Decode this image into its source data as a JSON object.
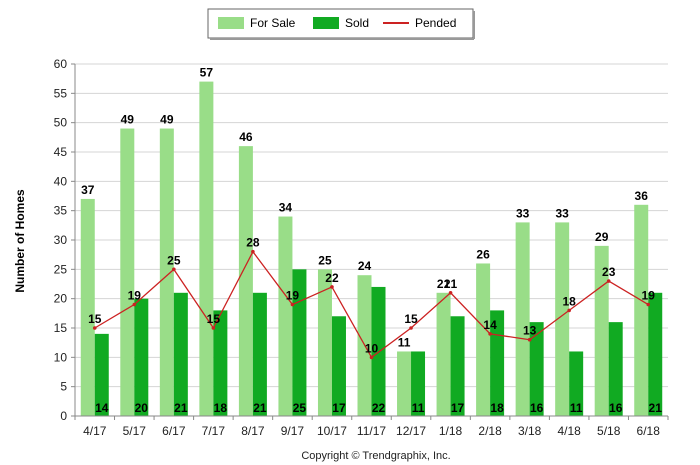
{
  "chart_data": {
    "type": "bar",
    "categories": [
      "4/17",
      "5/17",
      "6/17",
      "7/17",
      "8/17",
      "9/17",
      "10/17",
      "11/17",
      "12/17",
      "1/18",
      "2/18",
      "3/18",
      "4/18",
      "5/18",
      "6/18"
    ],
    "series": [
      {
        "name": "For Sale",
        "type": "bar",
        "color": "#99dd88",
        "values": [
          37,
          49,
          49,
          57,
          46,
          34,
          25,
          24,
          11,
          21,
          26,
          33,
          33,
          29,
          36
        ]
      },
      {
        "name": "Sold",
        "type": "bar",
        "color": "#11aa22",
        "values": [
          14,
          20,
          21,
          18,
          21,
          25,
          17,
          22,
          11,
          17,
          18,
          16,
          11,
          16,
          21
        ]
      },
      {
        "name": "Pended",
        "type": "line",
        "color": "#cc2222",
        "values": [
          15,
          19,
          25,
          15,
          28,
          19,
          22,
          10,
          15,
          21,
          14,
          13,
          18,
          23,
          19
        ]
      }
    ],
    "ylabel": "Number of Homes",
    "xlabel": "",
    "ylim": [
      0,
      60
    ],
    "yticks": [
      0,
      5,
      10,
      15,
      20,
      25,
      30,
      35,
      40,
      45,
      50,
      55,
      60
    ],
    "grid": true,
    "legend": "top-center",
    "copyright": "Copyright © Trendgraphix, Inc."
  }
}
